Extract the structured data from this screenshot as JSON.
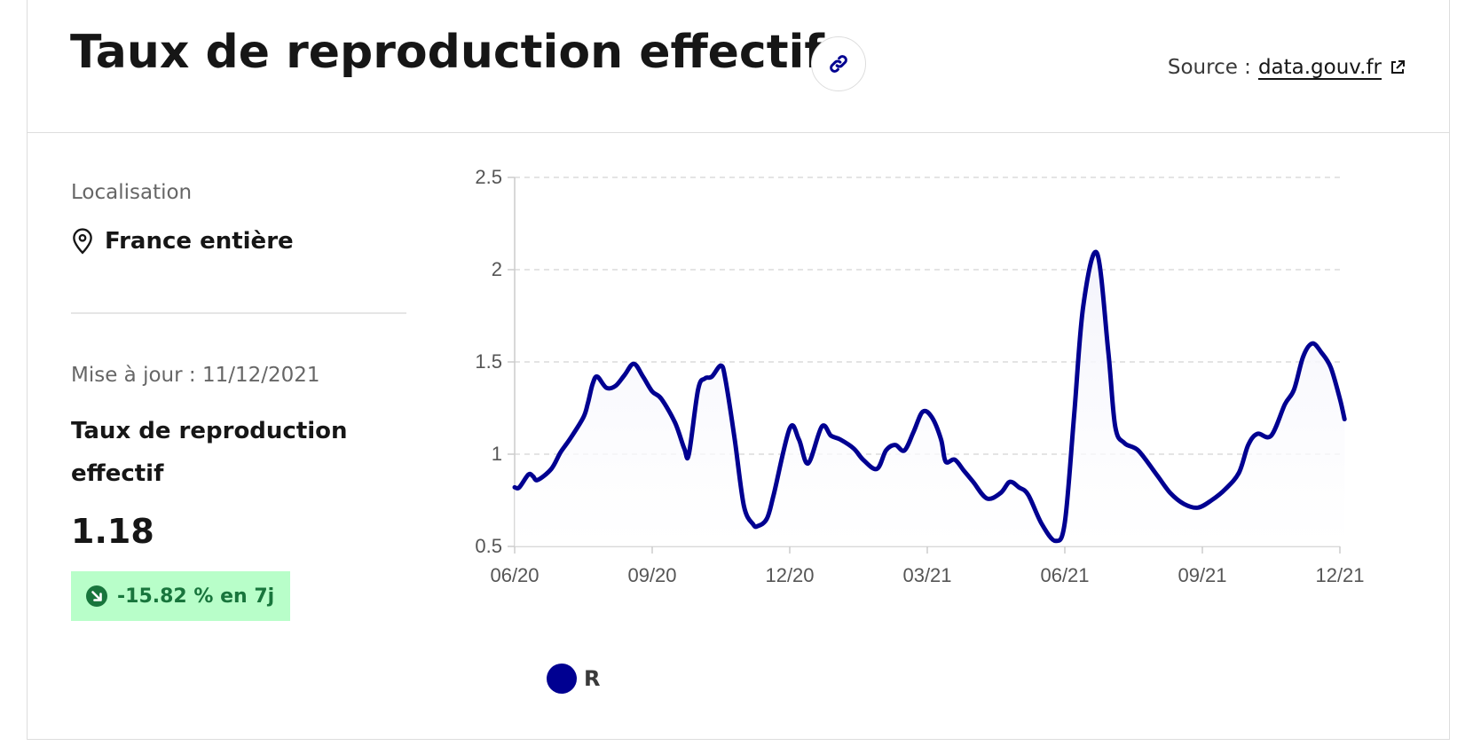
{
  "header": {
    "title": "Taux de reproduction effectif",
    "source_prefix": "Source :",
    "source_link": "data.gouv.fr"
  },
  "sidebar": {
    "location_label": "Localisation",
    "location_value": "France entière",
    "update_text": "Mise à jour : 11/12/2021",
    "indicator_label": "Taux de reproduction effectif",
    "indicator_value": "1.18",
    "trend_text": "-15.82 % en 7j"
  },
  "icons": {
    "link": "link-icon",
    "external": "external-link-icon",
    "location": "map-pin-icon",
    "trend": "arrow-down-right-icon"
  },
  "colors": {
    "series": "#000091",
    "area": "#f3f3fb",
    "badge_bg": "#b8fec9",
    "badge_text": "#18753c"
  },
  "chart_data": {
    "type": "area",
    "title": "",
    "xlabel": "",
    "ylabel": "",
    "ylim": [
      0.5,
      2.5
    ],
    "yticks": [
      0.5,
      1,
      1.5,
      2,
      2.5
    ],
    "ytick_labels": [
      "0.5",
      "1",
      "1.5",
      "2",
      "2.5"
    ],
    "x_tick_labels": [
      "06/20",
      "09/20",
      "12/20",
      "03/21",
      "06/21",
      "09/21",
      "12/21"
    ],
    "x_tick_months": [
      0,
      3,
      6,
      9,
      12,
      15,
      18
    ],
    "grid": true,
    "legend_position": "bottom-left",
    "series": [
      {
        "name": "R",
        "color": "#000091",
        "x": [
          0,
          0.1,
          0.3,
          0.4,
          0.5,
          0.8,
          1.0,
          1.2,
          1.5,
          1.6,
          1.7,
          1.8,
          2.0,
          2.2,
          2.4,
          2.6,
          2.8,
          3.0,
          3.2,
          3.5,
          3.7,
          3.8,
          4.0,
          4.15,
          4.3,
          4.5,
          4.6,
          4.8,
          5.0,
          5.2,
          5.3,
          5.5,
          5.65,
          6.0,
          6.2,
          6.4,
          6.7,
          6.9,
          7.1,
          7.4,
          7.6,
          7.9,
          8.1,
          8.3,
          8.5,
          8.7,
          8.9,
          9.1,
          9.3,
          9.4,
          9.6,
          9.8,
          10.0,
          10.3,
          10.6,
          10.8,
          11.0,
          11.2,
          11.5,
          11.8,
          12.0,
          12.2,
          12.4,
          12.7,
          12.95,
          13.1,
          13.3,
          13.6,
          14.0,
          14.3,
          14.6,
          14.9,
          15.2,
          15.5,
          15.8,
          16.0,
          16.2,
          16.5,
          16.8,
          17.0,
          17.2,
          17.4,
          17.6,
          17.8,
          18.0,
          18.1
        ],
        "values": [
          0.82,
          0.82,
          0.89,
          0.88,
          0.86,
          0.92,
          1.01,
          1.08,
          1.2,
          1.28,
          1.38,
          1.42,
          1.36,
          1.37,
          1.43,
          1.49,
          1.42,
          1.34,
          1.3,
          1.17,
          1.03,
          1.0,
          1.35,
          1.41,
          1.42,
          1.48,
          1.4,
          1.08,
          0.72,
          0.62,
          0.61,
          0.65,
          0.78,
          1.14,
          1.08,
          0.95,
          1.15,
          1.1,
          1.08,
          1.03,
          0.97,
          0.92,
          1.02,
          1.05,
          1.02,
          1.12,
          1.23,
          1.2,
          1.08,
          0.96,
          0.97,
          0.91,
          0.85,
          0.76,
          0.79,
          0.85,
          0.82,
          0.78,
          0.62,
          0.53,
          0.63,
          1.2,
          1.8,
          2.09,
          1.55,
          1.15,
          1.06,
          1.02,
          0.89,
          0.79,
          0.73,
          0.71,
          0.75,
          0.81,
          0.9,
          1.05,
          1.11,
          1.1,
          1.27,
          1.35,
          1.53,
          1.6,
          1.55,
          1.47,
          1.3,
          1.19
        ]
      }
    ]
  }
}
